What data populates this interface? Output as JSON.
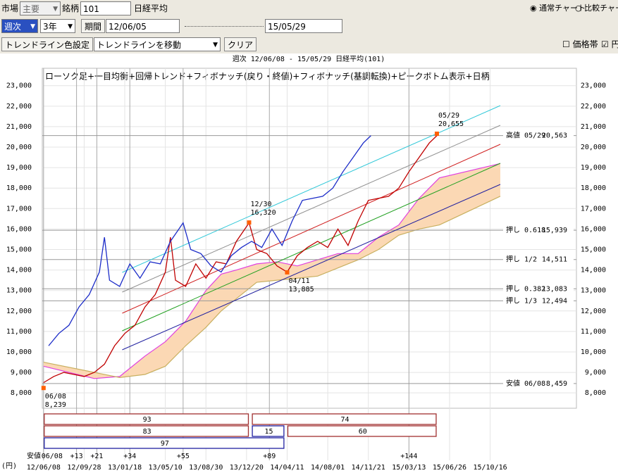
{
  "toolbar": {
    "market_label": "市場",
    "market": "主要",
    "code_label": "銘柄",
    "code": "101",
    "name": "日経平均",
    "radio_normal": "通常チャート",
    "radio_compare": "比較チャート",
    "period_unit": "週次",
    "span": "3年",
    "period_button": "期間",
    "start": "12/06/05",
    "end": "15/05/29",
    "trend_color_button": "トレンドライン色設定",
    "trend_move": "トレンドラインを移動",
    "clear_button": "クリア",
    "price_band": "価格帯",
    "yen_check": "円"
  },
  "chart_data": {
    "type": "line",
    "header": "週次 12/06/08 - 15/05/29 日経平均(101)",
    "title": "ローソク足+一目均衡+回帰トレンド+フィボナッチ(戻り・終値)+フィボナッチ(基調転換)+ピークボトム表示+日柄",
    "y_unit": "(円)",
    "ylim": [
      7250,
      23850
    ],
    "yticks": [
      {
        "value": 8000,
        "label": "8,000"
      },
      {
        "value": 9000,
        "label": "9,000"
      },
      {
        "value": 10000,
        "label": "10,000"
      },
      {
        "value": 11000,
        "label": "11,000"
      },
      {
        "value": 12000,
        "label": "12,000"
      },
      {
        "value": 13000,
        "label": "13,000"
      },
      {
        "value": 14000,
        "label": "14,000"
      },
      {
        "value": 15000,
        "label": "15,000"
      },
      {
        "value": 16000,
        "label": "16,000"
      },
      {
        "value": 17000,
        "label": "17,000"
      },
      {
        "value": 18000,
        "label": "18,000"
      },
      {
        "value": 19000,
        "label": "19,000"
      },
      {
        "value": 20000,
        "label": "20,000"
      },
      {
        "value": 21000,
        "label": "21,000"
      },
      {
        "value": 22000,
        "label": "22,000"
      },
      {
        "value": 23000,
        "label": "23,000"
      }
    ],
    "xlim": [
      -0.5,
      210
    ],
    "xticks": [
      {
        "value": 0,
        "label": "12/06/08"
      },
      {
        "value": 16,
        "label": "12/09/28"
      },
      {
        "value": 32,
        "label": "13/01/18"
      },
      {
        "value": 48,
        "label": "13/05/10"
      },
      {
        "value": 64,
        "label": "13/08/30"
      },
      {
        "value": 80,
        "label": "13/12/20"
      },
      {
        "value": 96,
        "label": "14/04/11"
      },
      {
        "value": 112,
        "label": "14/08/01"
      },
      {
        "value": 128,
        "label": "14/11/21"
      },
      {
        "value": 144,
        "label": "15/03/13"
      },
      {
        "value": 160,
        "label": "15/06/26"
      },
      {
        "value": 176,
        "label": "15/10/16"
      }
    ],
    "cycle_label": "安値",
    "cycle_ticks": [
      {
        "value": 0,
        "label": "06/08"
      },
      {
        "value": 13,
        "label": "+13"
      },
      {
        "value": 21,
        "label": "+21"
      },
      {
        "value": 34,
        "label": "+34"
      },
      {
        "value": 55,
        "label": "+55"
      },
      {
        "value": 89,
        "label": "+89"
      },
      {
        "value": 144,
        "label": "+144"
      }
    ],
    "series": [
      {
        "color": "#c00000",
        "x": [
          0,
          4,
          8,
          12,
          16,
          20,
          24,
          28,
          32,
          36,
          40,
          44,
          48,
          50,
          52,
          56,
          60,
          64,
          68,
          72,
          76,
          81,
          84,
          88,
          92,
          96,
          100,
          104,
          108,
          112,
          116,
          120,
          124,
          128,
          132,
          136,
          140,
          144,
          148,
          152,
          155
        ],
        "values": [
          8500,
          8800,
          9000,
          8900,
          8800,
          9000,
          9400,
          10300,
          10900,
          11300,
          12200,
          12800,
          13900,
          15600,
          13500,
          13200,
          14300,
          13600,
          14400,
          14300,
          15400,
          16300,
          15000,
          14800,
          14200,
          13900,
          14700,
          15100,
          15400,
          15100,
          16000,
          15200,
          16400,
          17400,
          17500,
          17600,
          18000,
          18800,
          19500,
          20200,
          20560
        ]
      },
      {
        "color": "#1c2cc8",
        "x": [
          2,
          6,
          10,
          14,
          18,
          22,
          24,
          26,
          30,
          34,
          38,
          42,
          46,
          50,
          55,
          58,
          62,
          66,
          70,
          74,
          78,
          82,
          86,
          90,
          94,
          98,
          102,
          106,
          110,
          114,
          118,
          122,
          126,
          129
        ],
        "values": [
          10300,
          10900,
          11300,
          12200,
          12800,
          13900,
          15600,
          13500,
          13200,
          14300,
          13600,
          14400,
          14300,
          15400,
          16300,
          15000,
          14800,
          14200,
          13900,
          14700,
          15100,
          15400,
          15100,
          16000,
          15200,
          16400,
          17400,
          17500,
          17600,
          18000,
          18800,
          19500,
          20200,
          20560
        ]
      }
    ],
    "cloud": {
      "fill": "#fbd8b4",
      "x": [
        0,
        20,
        30,
        40,
        48,
        56,
        64,
        70,
        76,
        84,
        92,
        100,
        108,
        116,
        124,
        132,
        140,
        148,
        156,
        180
      ],
      "span_a": {
        "color": "#e040e0",
        "values": [
          9300,
          8700,
          8800,
          9800,
          10500,
          11500,
          13000,
          13800,
          14000,
          14300,
          14400,
          14200,
          14500,
          14800,
          14800,
          15600,
          16200,
          17500,
          18500,
          19200
        ]
      },
      "span_b": {
        "color": "#c8b060",
        "values": [
          9500,
          9000,
          8750,
          8900,
          9300,
          10300,
          11200,
          12000,
          12600,
          13400,
          13500,
          13600,
          13700,
          14100,
          14500,
          15000,
          15700,
          16000,
          16200,
          17600
        ]
      }
    },
    "trend_lines": [
      {
        "color": "#30c8d8",
        "x": [
          31,
          180
        ],
        "values": [
          13883,
          22028
        ]
      },
      {
        "color": "#909090",
        "x": [
          31,
          180
        ],
        "values": [
          12921,
          21066
        ]
      },
      {
        "color": "#d02020",
        "x": [
          31,
          180
        ],
        "values": [
          11890,
          20138
        ]
      },
      {
        "color": "#20a020",
        "x": [
          31,
          180
        ],
        "values": [
          11031,
          19210
        ]
      },
      {
        "color": "#2020a0",
        "x": [
          31,
          180
        ],
        "values": [
          10102,
          18179
        ]
      }
    ],
    "levels": [
      {
        "label": "高値 05/29",
        "value": 20563,
        "value_label": "20,563"
      },
      {
        "label": "押し 0.618",
        "value": 15939,
        "value_label": "15,939"
      },
      {
        "label": "押し 1/2",
        "value": 14511,
        "value_label": "14,511"
      },
      {
        "label": "押し 0.382",
        "value": 13083,
        "value_label": "13,083"
      },
      {
        "label": "押し 1/3",
        "value": 12494,
        "value_label": "12,494"
      },
      {
        "label": "安値 06/08",
        "value": 8459,
        "value_label": "8,459"
      }
    ],
    "peaks": [
      {
        "date": "05/29",
        "x": 155,
        "value": 20655,
        "value_label": "20,655",
        "side": "above"
      },
      {
        "date": "12/30",
        "x": 81,
        "value": 16320,
        "value_label": "16,320",
        "side": "above"
      },
      {
        "date": "04/11",
        "x": 96,
        "value": 13885,
        "value_label": "13,885",
        "side": "below"
      },
      {
        "date": "06/08",
        "x": 0,
        "value": 8239,
        "value_label": "8,239",
        "side": "below"
      }
    ],
    "count_boxes": [
      {
        "text": "93",
        "start": 0,
        "end": 81,
        "row": 0,
        "color": "#a03030"
      },
      {
        "text": "74",
        "start": 82,
        "end": 155,
        "row": 0,
        "color": "#a03030"
      },
      {
        "text": "83",
        "start": 0,
        "end": 81,
        "row": 1,
        "color": "#a03030"
      },
      {
        "text": "15",
        "start": 82,
        "end": 95,
        "row": 1,
        "color": "#2020a0"
      },
      {
        "text": "60",
        "start": 96,
        "end": 155,
        "row": 1,
        "color": "#a03030"
      },
      {
        "text": "97",
        "start": 0,
        "end": 95,
        "row": 2,
        "color": "#2020a0"
      }
    ]
  }
}
